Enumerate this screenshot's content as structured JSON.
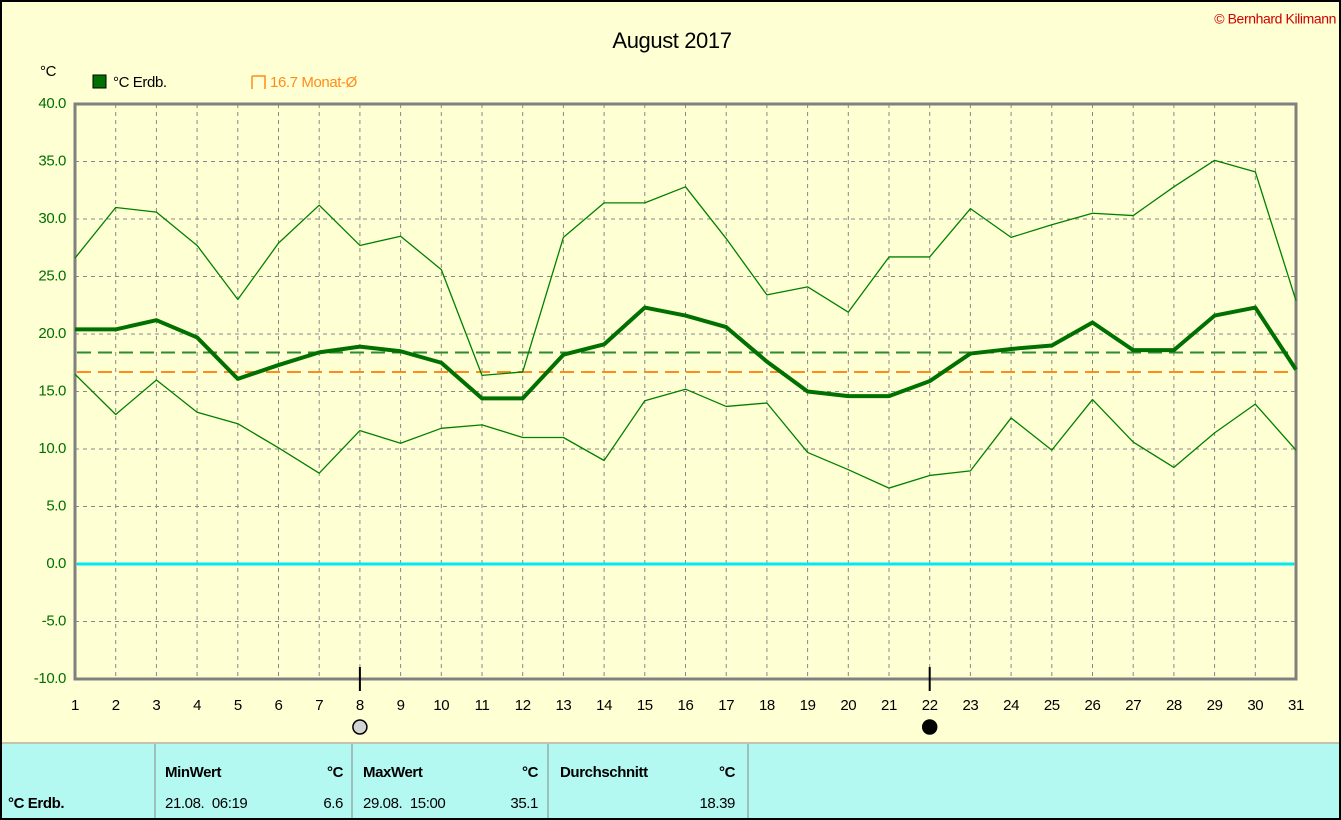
{
  "chart_data": {
    "type": "line",
    "title": "August 2017",
    "copyright": "© Bernhard Kilimann",
    "ylabel": "°C",
    "x": [
      1,
      2,
      3,
      4,
      5,
      6,
      7,
      8,
      9,
      10,
      11,
      12,
      13,
      14,
      15,
      16,
      17,
      18,
      19,
      20,
      21,
      22,
      23,
      24,
      25,
      26,
      27,
      28,
      29,
      30,
      31
    ],
    "xlim": [
      1,
      31
    ],
    "xticks": [
      1,
      2,
      3,
      4,
      5,
      6,
      7,
      8,
      9,
      10,
      11,
      12,
      13,
      14,
      15,
      16,
      17,
      18,
      19,
      20,
      21,
      22,
      23,
      24,
      25,
      26,
      27,
      28,
      29,
      30,
      31
    ],
    "ylim": [
      -10,
      40
    ],
    "yticks": [
      {
        "value": -10,
        "label": "-10.0"
      },
      {
        "value": -5,
        "label": "-5.0"
      },
      {
        "value": 0,
        "label": "0.0"
      },
      {
        "value": 5,
        "label": "5.0"
      },
      {
        "value": 10,
        "label": "10.0"
      },
      {
        "value": 15,
        "label": "15.0"
      },
      {
        "value": 20,
        "label": "20.0"
      },
      {
        "value": 25,
        "label": "25.0"
      },
      {
        "value": 30,
        "label": "30.0"
      },
      {
        "value": 35,
        "label": "35.0"
      },
      {
        "value": 40,
        "label": "40.0"
      }
    ],
    "grid": true,
    "series": [
      {
        "name": "°C Erdb.",
        "color": "#007000",
        "width": 4,
        "values": [
          20.4,
          20.4,
          21.2,
          19.7,
          16.1,
          17.3,
          18.4,
          18.9,
          18.5,
          17.5,
          14.4,
          14.4,
          18.2,
          19.1,
          22.3,
          21.6,
          20.6,
          17.6,
          15.0,
          14.6,
          14.6,
          15.9,
          18.3,
          18.7,
          19.0,
          21.0,
          18.6,
          18.6,
          21.6,
          22.3,
          16.9
        ]
      },
      {
        "color": "#008000",
        "width": 1.3,
        "values": [
          26.6,
          31.0,
          30.6,
          27.7,
          23.0,
          27.9,
          31.2,
          27.7,
          28.5,
          25.6,
          16.4,
          16.7,
          28.4,
          31.4,
          31.4,
          32.8,
          28.3,
          23.4,
          24.1,
          21.9,
          26.7,
          26.7,
          30.9,
          28.4,
          29.5,
          30.5,
          30.3,
          32.8,
          35.1,
          34.1,
          22.9
        ]
      },
      {
        "color": "#008000",
        "width": 1.3,
        "values": [
          16.5,
          13.0,
          16.0,
          13.2,
          12.2,
          10.1,
          7.9,
          11.6,
          10.5,
          11.8,
          12.1,
          11.0,
          11.0,
          9.0,
          14.2,
          15.2,
          13.7,
          14.0,
          9.7,
          8.2,
          6.6,
          7.7,
          8.1,
          12.7,
          9.9,
          14.3,
          10.6,
          8.4,
          11.4,
          13.9,
          9.9
        ]
      }
    ],
    "reference_lines": [
      {
        "value": 18.39,
        "color": "#2e8b2e",
        "dashed": true
      },
      {
        "value": 16.7,
        "label": "16.7 Monat-Ø",
        "color": "#ff8c1a",
        "dashed": true
      },
      {
        "value": 0,
        "color": "#00e8f0",
        "dashed": false
      }
    ],
    "markers": [
      {
        "x": 8,
        "color": "#d4d4d4"
      },
      {
        "x": 22,
        "color": "#000000"
      }
    ],
    "table": {
      "header": [
        "MinWert",
        "°C",
        "MaxWert",
        "°C",
        "Durchschnitt",
        "°C"
      ],
      "rows": [
        [
          "°C Erdb.",
          "21.08.  06:19",
          "6.6",
          "29.08.  15:00",
          "35.1",
          "18.39"
        ]
      ]
    }
  }
}
